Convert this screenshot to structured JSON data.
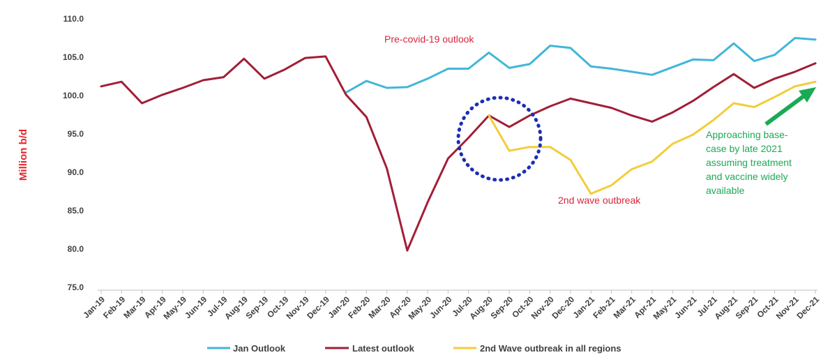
{
  "chart_data": {
    "type": "line",
    "categories": [
      "Jan-19",
      "Feb-19",
      "Mar-19",
      "Apr-19",
      "May-19",
      "Jun-19",
      "Jul-19",
      "Aug-19",
      "Sep-19",
      "Oct-19",
      "Nov-19",
      "Dec-19",
      "Jan-20",
      "Feb-20",
      "Mar-20",
      "Apr-20",
      "May-20",
      "Jun-20",
      "Jul-20",
      "Aug-20",
      "Sep-20",
      "Oct-20",
      "Nov-20",
      "Dec-20",
      "Jan-21",
      "Feb-21",
      "Mar-21",
      "Apr-21",
      "May-21",
      "Jun-21",
      "Jul-21",
      "Aug-21",
      "Sep-21",
      "Oct-21",
      "Nov-21",
      "Dec-21"
    ],
    "series": [
      {
        "name": "Jan Outlook",
        "color": "#41b6d8",
        "values": [
          null,
          null,
          null,
          null,
          null,
          null,
          null,
          null,
          null,
          null,
          null,
          null,
          100.4,
          101.9,
          101.0,
          101.1,
          102.2,
          103.5,
          103.5,
          105.6,
          103.6,
          104.1,
          106.5,
          106.2,
          103.8,
          103.5,
          103.1,
          102.7,
          103.7,
          104.7,
          104.6,
          106.8,
          104.5,
          105.3,
          107.5,
          107.3
        ]
      },
      {
        "name": "Latest outlook",
        "color": "#a21e36",
        "values": [
          101.2,
          101.8,
          99.0,
          100.1,
          101.0,
          102.0,
          102.4,
          104.8,
          102.2,
          103.4,
          104.9,
          105.1,
          100.1,
          97.2,
          90.5,
          79.8,
          86.1,
          91.8,
          94.5,
          97.4,
          95.9,
          97.4,
          98.6,
          99.6,
          99.0,
          98.4,
          97.4,
          96.6,
          97.8,
          99.3,
          101.1,
          102.8,
          101.0,
          102.2,
          103.1,
          104.2
        ]
      },
      {
        "name": "2nd Wave outbreak in all regions",
        "color": "#f2cd3b",
        "values": [
          null,
          null,
          null,
          null,
          null,
          null,
          null,
          null,
          null,
          null,
          null,
          null,
          null,
          null,
          null,
          null,
          null,
          null,
          null,
          97.4,
          92.8,
          93.3,
          93.3,
          91.6,
          87.2,
          88.3,
          90.4,
          91.4,
          93.7,
          94.9,
          96.8,
          99.0,
          98.5,
          99.8,
          101.2,
          101.8
        ]
      }
    ],
    "ylim": [
      75.0,
      110.0
    ],
    "yticks": [
      "75.0",
      "80.0",
      "85.0",
      "90.0",
      "95.0",
      "100.0",
      "105.0",
      "110.0"
    ],
    "ylabel": "Million b/d",
    "grid": false,
    "legend_position": "bottom",
    "annotations": {
      "pre_covid": "Pre-covid-19 outlook",
      "second_wave": "2nd wave outbreak",
      "approach": [
        "Approaching base-",
        "case by late 2021",
        "assuming treatment",
        "and vaccine widely",
        "available"
      ]
    },
    "annotation_colors": {
      "pre_covid": "#d7263d",
      "second_wave": "#d7263d",
      "approach": "#1aaa55",
      "arrow": "#1aaa55",
      "circle": "#1c2db5"
    }
  }
}
